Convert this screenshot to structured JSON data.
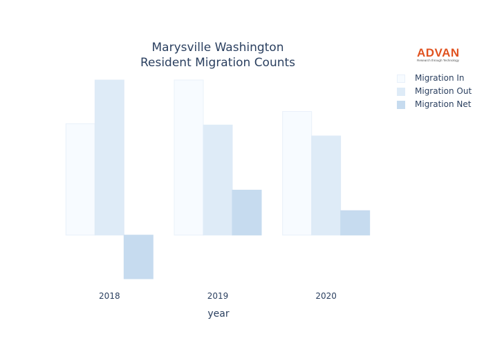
{
  "chart_data": {
    "type": "bar",
    "title": [
      "Marysville Washington",
      "Resident Migration Counts"
    ],
    "xlabel": "year",
    "ylabel": "",
    "categories": [
      "2018",
      "2019",
      "2020"
    ],
    "series": [
      {
        "name": "Migration In",
        "values": [
          2550,
          3550,
          2830
        ],
        "color": "#f7fbff",
        "stroke": "#e8f0fa"
      },
      {
        "name": "Migration Out",
        "values": [
          3550,
          2520,
          2270
        ],
        "color": "#deebf7",
        "stroke": "#deebf7"
      },
      {
        "name": "Migration Net",
        "values": [
          -1000,
          1030,
          560
        ],
        "color": "#c6dbef",
        "stroke": "#c6dbef"
      }
    ],
    "ylim": [
      -1000,
      3550
    ],
    "grid": false,
    "legend": "top-right",
    "barmode": "group"
  },
  "logo": {
    "text": "ADVAN",
    "tagline": "Research through Technology"
  }
}
